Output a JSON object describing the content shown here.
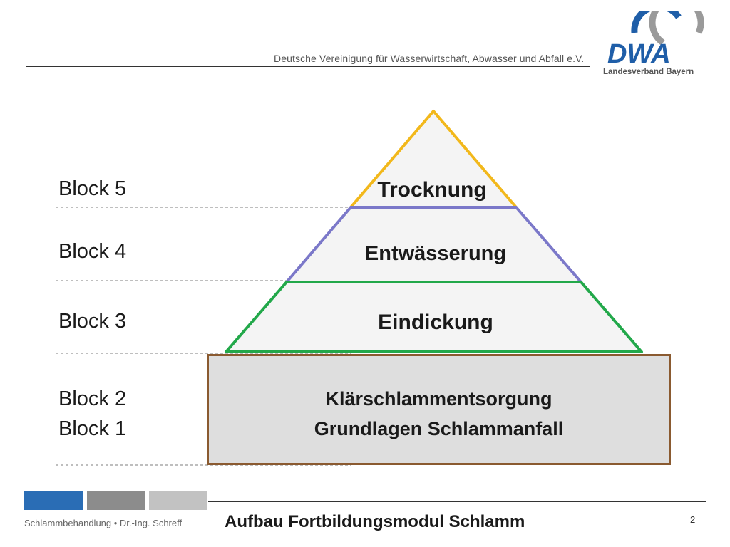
{
  "header": {
    "org_name": "Deutsche Vereinigung für Wasserwirtschaft, Abwasser und Abfall e.V.",
    "logo": {
      "text": "DWA",
      "subtitle": "Landesverband Bayern",
      "colors": {
        "blue": "#1f5ea8",
        "gray": "#9a9a9a"
      }
    }
  },
  "blocks": [
    {
      "label": "Block 5"
    },
    {
      "label": "Block 4"
    },
    {
      "label": "Block 3"
    },
    {
      "label": "Block 2"
    },
    {
      "label": "Block 1"
    }
  ],
  "pyramid": {
    "tiers": [
      {
        "label": "Trocknung",
        "color": "#f2b81b"
      },
      {
        "label": "Entwässerung",
        "color": "#7b78c9"
      },
      {
        "label": "Eindickung",
        "color": "#22a84a"
      }
    ],
    "base": {
      "line1": "Klärschlammentsorgung",
      "line2": "Grundlagen Schlammanfall",
      "border_color": "#8a5a30",
      "fill": "#dedede"
    }
  },
  "footer": {
    "left_text": "Schlammbehandlung • Dr.-Ing. Schreff",
    "title": "Aufbau Fortbildungsmodul Schlamm",
    "page_number": "2",
    "bar_colors": [
      "#2a6db5",
      "#8c8c8c",
      "#c2c2c2"
    ]
  }
}
